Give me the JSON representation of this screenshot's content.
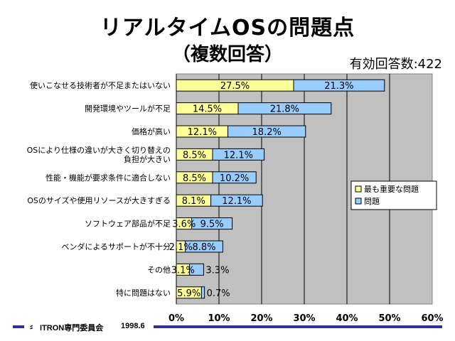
{
  "title_line1": "リアルタイムOSの問題点",
  "title_line2": "（複数回答）",
  "respondents": "有効回答数:422",
  "footer": {
    "org": "ITRON専門委員会",
    "date": "1998.6"
  },
  "colors": {
    "primary": "#ffff99",
    "secondary": "#99ccff",
    "plot_bg": "#c0c0c0",
    "footer_bar": "#2e3192"
  },
  "chart_data": {
    "type": "bar",
    "orientation": "horizontal",
    "stacked": true,
    "categories": [
      "使いこなせる技術者が不足またはいない",
      "開発環境やツールが不足",
      "価格が高い",
      "OSにより仕様の違いが大きく切り替えの負担が大きい",
      "性能・機能が要求条件に適合しない",
      "OSのサイズや使用リソースが大きすぎる",
      "ソフトウェア部品が不足",
      "ベンダによるサポートが不十分",
      "その他",
      "特に問題はない"
    ],
    "category_lines": [
      [
        "使いこなせる技術者が不足またはいない"
      ],
      [
        "開発環境やツールが不足"
      ],
      [
        "価格が高い"
      ],
      [
        "OSにより仕様の違いが大きく切り替えの",
        "負担が大きい"
      ],
      [
        "性能・機能が要求条件に適合しない"
      ],
      [
        "OSのサイズや使用リソースが大きすぎる"
      ],
      [
        "ソフトウェア部品が不足"
      ],
      [
        "ベンダによるサポートが不十分"
      ],
      [
        "その他"
      ],
      [
        "特に問題はない"
      ]
    ],
    "series": [
      {
        "name": "最も重要な問題",
        "values": [
          27.5,
          14.5,
          12.1,
          8.5,
          8.5,
          8.1,
          3.6,
          2.1,
          3.1,
          5.9
        ],
        "labels": [
          "27.5%",
          "14.5%",
          "12.1%",
          "8.5%",
          "8.5%",
          "8.1%",
          "3.6%",
          "2.1%",
          "3.1%",
          "5.9%"
        ]
      },
      {
        "name": "問題",
        "values": [
          21.3,
          21.8,
          18.2,
          12.1,
          10.2,
          12.1,
          9.5,
          8.8,
          3.3,
          0.7
        ],
        "labels": [
          "21.3%",
          "21.8%",
          "18.2%",
          "12.1%",
          "10.2%",
          "12.1%",
          "9.5%",
          "8.8%",
          "3.3%",
          "0.7%"
        ]
      }
    ],
    "xlim": [
      0,
      60
    ],
    "xticks": [
      "0%",
      "10%",
      "20%",
      "30%",
      "40%",
      "50%",
      "60%"
    ],
    "grid": true,
    "legend_position": "right"
  }
}
